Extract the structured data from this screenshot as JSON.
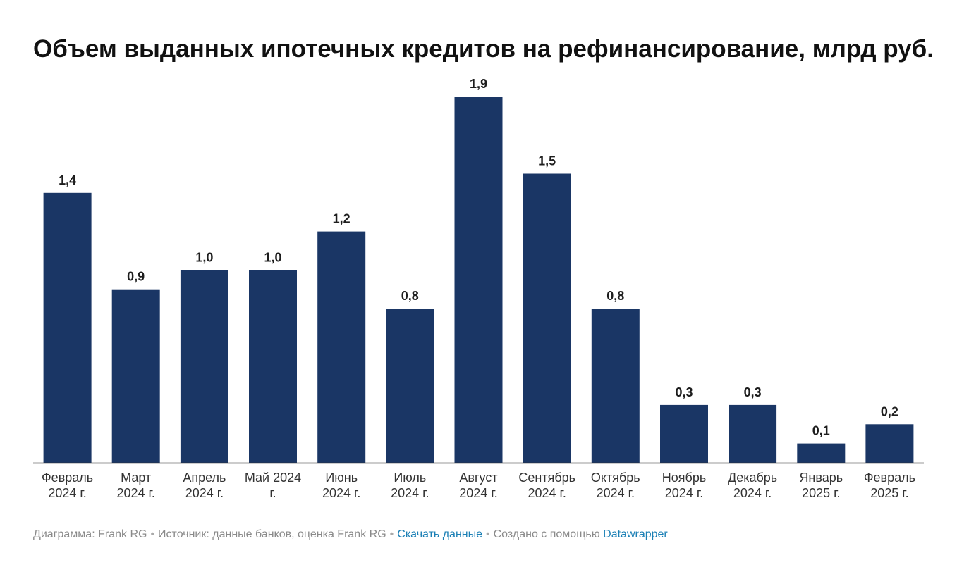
{
  "header": {
    "title": "Объем выданных ипотечных кредитов на рефинансирование, млрд руб."
  },
  "colors": {
    "bar": "#1a3665",
    "axis": "#333333",
    "link": "#1a7fb5"
  },
  "chart_data": {
    "type": "bar",
    "title": "Объем выданных ипотечных кредитов на рефинансирование, млрд руб.",
    "categories": [
      [
        "Февраль",
        "2024 г."
      ],
      [
        "Март",
        "2024 г."
      ],
      [
        "Апрель",
        "2024 г."
      ],
      [
        "Май 2024",
        "г."
      ],
      [
        "Июнь",
        "2024 г."
      ],
      [
        "Июль",
        "2024 г."
      ],
      [
        "Август",
        "2024 г."
      ],
      [
        "Сентябрь",
        "2024 г."
      ],
      [
        "Октябрь",
        "2024 г."
      ],
      [
        "Ноябрь",
        "2024 г."
      ],
      [
        "Декабрь",
        "2024 г."
      ],
      [
        "Январь",
        "2025 г."
      ],
      [
        "Февраль",
        "2025 г."
      ]
    ],
    "values": [
      1.4,
      0.9,
      1.0,
      1.0,
      1.2,
      0.8,
      1.9,
      1.5,
      0.8,
      0.3,
      0.3,
      0.1,
      0.2
    ],
    "value_labels": [
      "1,4",
      "0,9",
      "1,0",
      "1,0",
      "1,2",
      "0,8",
      "1,9",
      "1,5",
      "0,8",
      "0,3",
      "0,3",
      "0,1",
      "0,2"
    ],
    "ylim": [
      0,
      1.9
    ],
    "grid": false,
    "legend": "none"
  },
  "footer": {
    "chart_by": "Диаграмма: Frank RG",
    "source": "Источник: данные банков, оценка Frank RG",
    "download_link": "Скачать данные",
    "created_with": "Создано с помощью",
    "datawrapper_link": "Datawrapper"
  }
}
